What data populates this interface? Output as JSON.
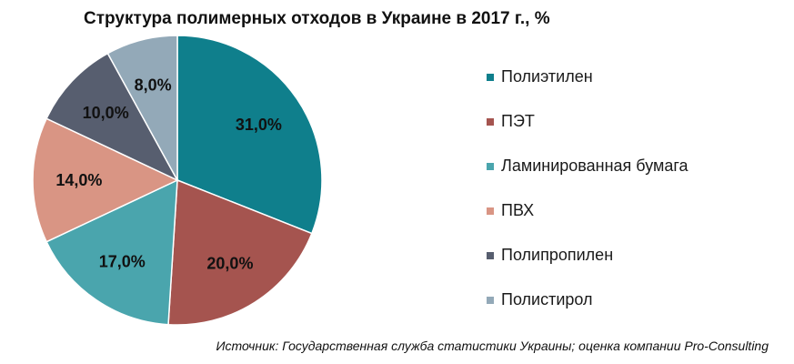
{
  "title": "Структура полимерных отходов в Украине в 2017 г., %",
  "source": "Источник: Государственная служба статистики Украины; оценка компании Pro-Consulting",
  "chart_data": {
    "type": "pie",
    "title": "Структура полимерных отходов в Украине в 2017 г., %",
    "categories": [
      "Полиэтилен",
      "ПЭТ",
      "Ламинированная бумага",
      "ПВХ",
      "Полипропилен",
      "Полистирол"
    ],
    "values": [
      31.0,
      20.0,
      17.0,
      14.0,
      10.0,
      8.0
    ],
    "labels": [
      "31,0%",
      "20,0%",
      "17,0%",
      "14,0%",
      "10,0%",
      "8,0%"
    ],
    "colors": [
      "#0f7f8c",
      "#a5544f",
      "#4aa5ad",
      "#d99584",
      "#575e6f",
      "#93a9b8"
    ],
    "legend_position": "right",
    "start": "12 o'clock",
    "direction": "clockwise"
  }
}
